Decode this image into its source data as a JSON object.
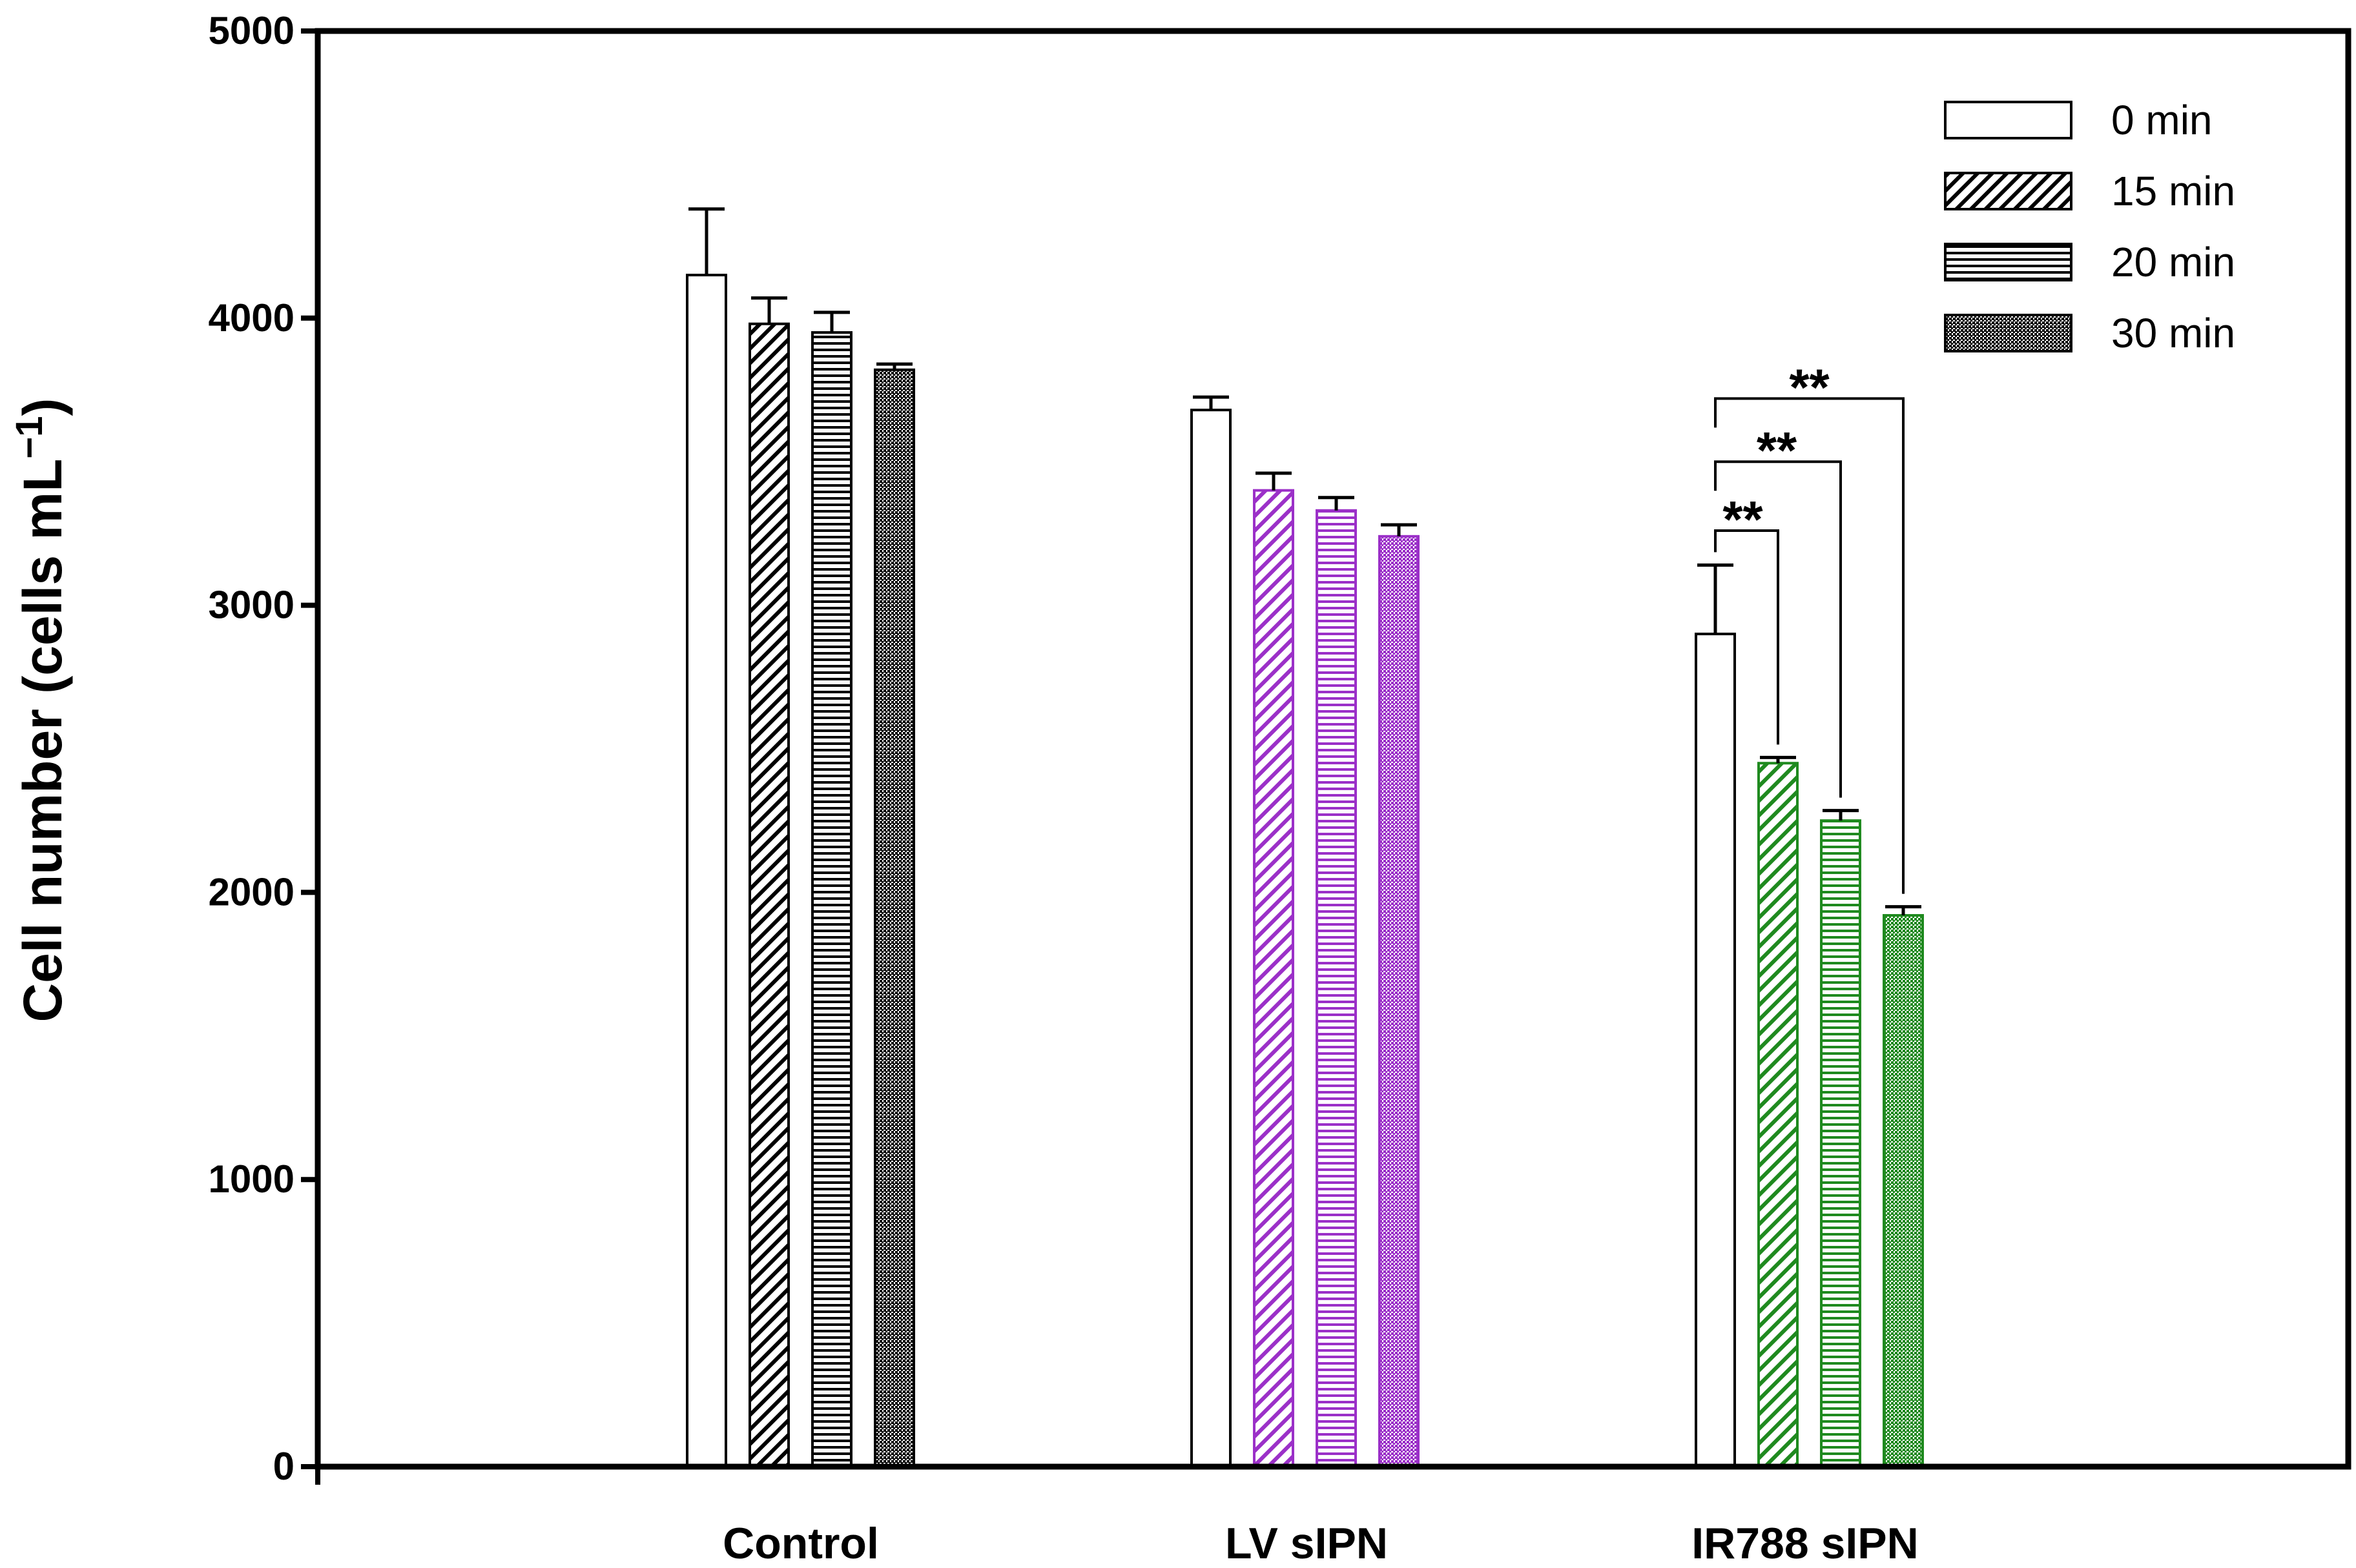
{
  "chart_data": {
    "type": "bar",
    "categories": [
      "Control",
      "LV sIPN",
      "IR788 sIPN"
    ],
    "ylabel": "Cell number (cells mL",
    "ylabel_sup": "−1",
    "ylabel_close": ")",
    "ylim": [
      0,
      5000
    ],
    "yticks": [
      0,
      1000,
      2000,
      3000,
      4000,
      5000
    ],
    "grid": false,
    "legend_position": "top-right",
    "category_colors": [
      "#000000",
      "#9b30c8",
      "#1f8a1f"
    ],
    "series": [
      {
        "name": "0 min",
        "pattern": "none",
        "values": [
          4150,
          3680,
          2900
        ],
        "errors": [
          230,
          45,
          240
        ]
      },
      {
        "name": "15 min",
        "pattern": "diagonal",
        "values": [
          3980,
          3400,
          2450
        ],
        "errors": [
          90,
          60,
          20
        ]
      },
      {
        "name": "20 min",
        "pattern": "horizontal",
        "values": [
          3950,
          3330,
          2250
        ],
        "errors": [
          70,
          45,
          35
        ]
      },
      {
        "name": "30 min",
        "pattern": "dots",
        "values": [
          3820,
          3240,
          1920
        ],
        "errors": [
          20,
          40,
          30
        ]
      }
    ],
    "significance": [
      {
        "category": "IR788 sIPN",
        "from_series": 0,
        "to_series": 1,
        "y": 3260,
        "label": "**"
      },
      {
        "category": "IR788 sIPN",
        "from_series": 0,
        "to_series": 2,
        "y": 3500,
        "label": "**"
      },
      {
        "category": "IR788 sIPN",
        "from_series": 0,
        "to_series": 3,
        "y": 3720,
        "label": "**"
      }
    ]
  }
}
